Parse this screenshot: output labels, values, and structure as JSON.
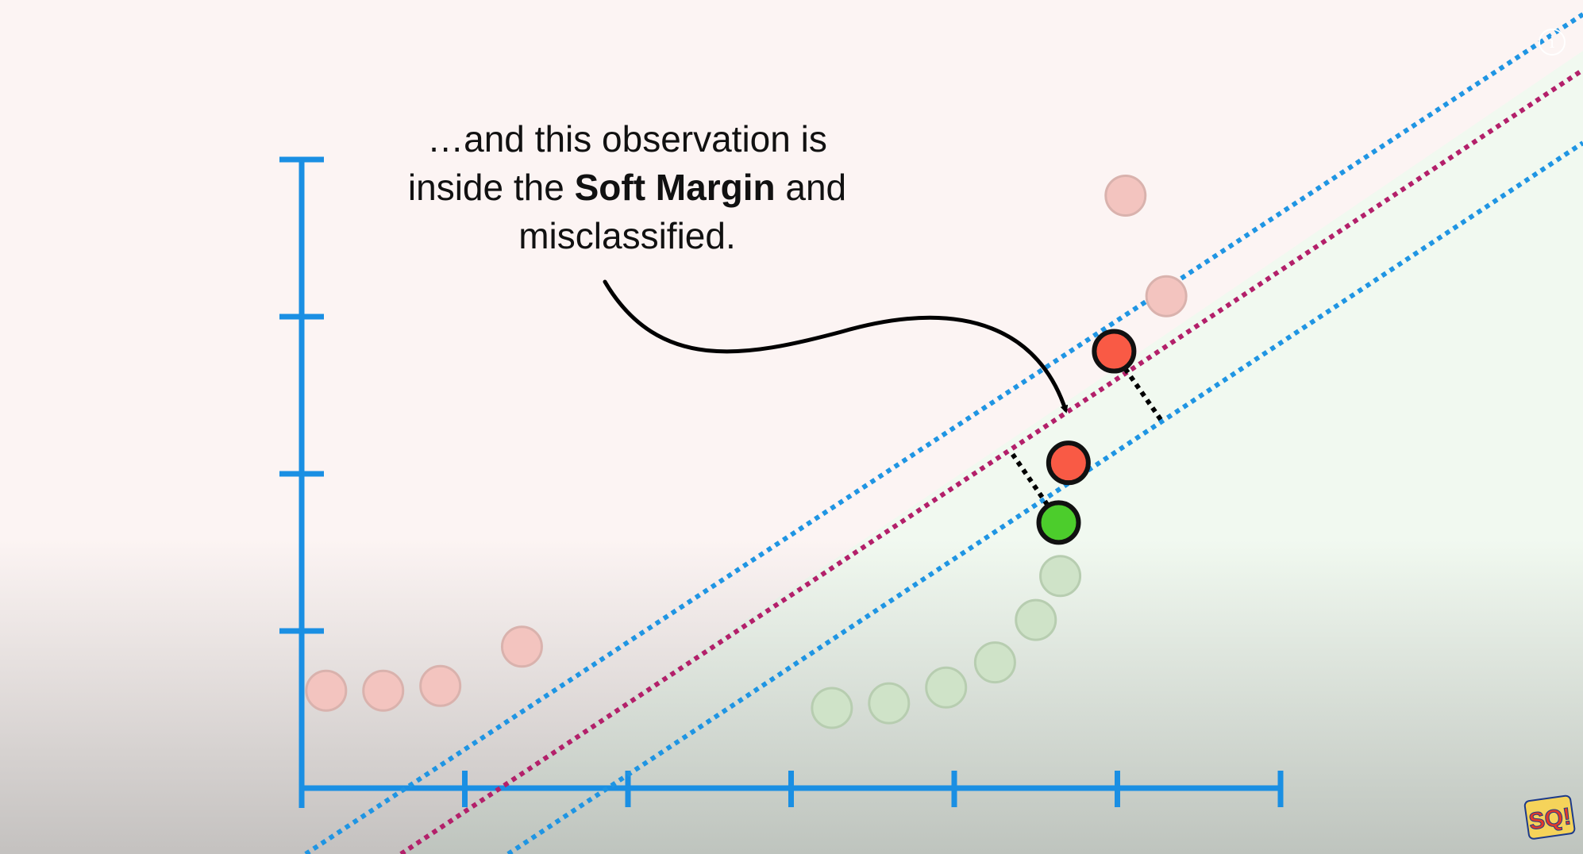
{
  "caption": {
    "line1": "…and this observation is",
    "line2_before": "inside the ",
    "line2_bold": "Soft Margin",
    "line2_after": " and",
    "line3": "misclassified."
  },
  "icons": {
    "info": "info-icon",
    "channel_logo": "statquest-logo"
  },
  "logo_text": "SQ!",
  "colors": {
    "axis": "#1a8fe3",
    "margin_line": "#1f95e3",
    "threshold_line": "#b3206a",
    "red_point": "#f95a45",
    "green_point": "#4ccd2c",
    "faded_red": "#f3c4bf",
    "faded_green": "#cfe3c8",
    "outline": "#111111"
  },
  "chart_data": {
    "type": "scatter",
    "axes": {
      "x_ticks": 7,
      "y_ticks": 5,
      "tick_labels": "none"
    },
    "lines": [
      {
        "role": "margin-upper",
        "style": "dotted",
        "color": "#1f95e3"
      },
      {
        "role": "threshold",
        "style": "dotted",
        "color": "#b3206a"
      },
      {
        "role": "margin-lower",
        "style": "dotted",
        "color": "#1f95e3"
      }
    ],
    "faded_red_points": [
      [
        0.15,
        0.62
      ],
      [
        0.5,
        0.62
      ],
      [
        0.85,
        0.65
      ],
      [
        1.35,
        0.9
      ],
      [
        5.3,
        3.13
      ],
      [
        5.05,
        3.77
      ]
    ],
    "faded_green_points": [
      [
        3.25,
        0.51
      ],
      [
        3.6,
        0.54
      ],
      [
        3.95,
        0.64
      ],
      [
        4.25,
        0.8
      ],
      [
        4.5,
        1.07
      ],
      [
        4.65,
        1.35
      ]
    ],
    "highlighted_points": [
      {
        "class": "red",
        "x": 4.98,
        "y": 2.78,
        "distance_to_margin": true
      },
      {
        "class": "red",
        "x": 4.7,
        "y": 2.07,
        "distance_to_margin": false,
        "annotated": true
      },
      {
        "class": "green",
        "x": 4.64,
        "y": 1.69,
        "distance_to_margin": true
      }
    ]
  }
}
